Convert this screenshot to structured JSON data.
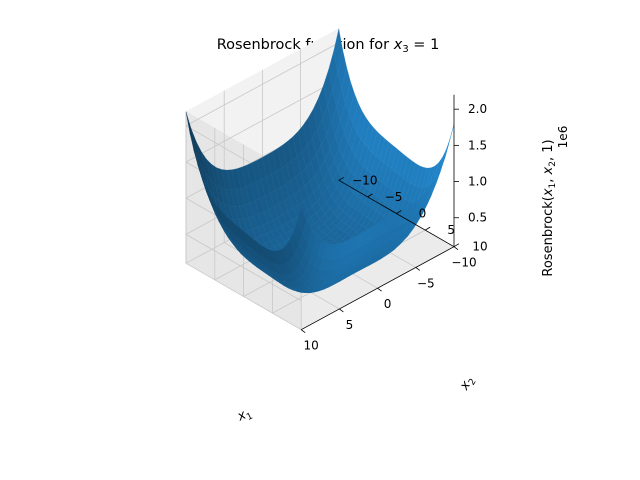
{
  "chart_data": {
    "type": "surface3d",
    "title_main": "Rosenbrock function for ",
    "title_math": "x",
    "title_sub": "3",
    "title_tail": " = 1",
    "function": "Rosenbrock(x1, x2, x3=1)",
    "x_range": [
      -10,
      10
    ],
    "y_range": [
      -10,
      10
    ],
    "z_range": [
      0.1,
      2.2
    ],
    "z_scale": 1000000.0,
    "z_offset_text": "1e6",
    "x_ticks": [
      "−10",
      "−5",
      "0",
      "5",
      "10"
    ],
    "x_tick_values": [
      -10,
      -5,
      0,
      5,
      10
    ],
    "y_ticks": [
      "−10",
      "−5",
      "0",
      "5",
      "10"
    ],
    "y_tick_values": [
      -10,
      -5,
      0,
      5,
      10
    ],
    "z_ticks": [
      "0.5",
      "1.0",
      "1.5",
      "2.0"
    ],
    "z_tick_values": [
      0.5,
      1.0,
      1.5,
      2.0
    ],
    "xlabel_main": "x",
    "xlabel_sub": "1",
    "ylabel_main": "x",
    "ylabel_sub": "2",
    "zlabel_main": "Rosenbrock(",
    "zlabel_x1": "x",
    "zlabel_x1_sub": "1",
    "zlabel_sep": ", ",
    "zlabel_x2": "x",
    "zlabel_x2_sub": "2",
    "zlabel_tail": ", 1)",
    "surface_color": "#1f77b4",
    "pane_color": "#f2f2f2",
    "grid": true
  }
}
